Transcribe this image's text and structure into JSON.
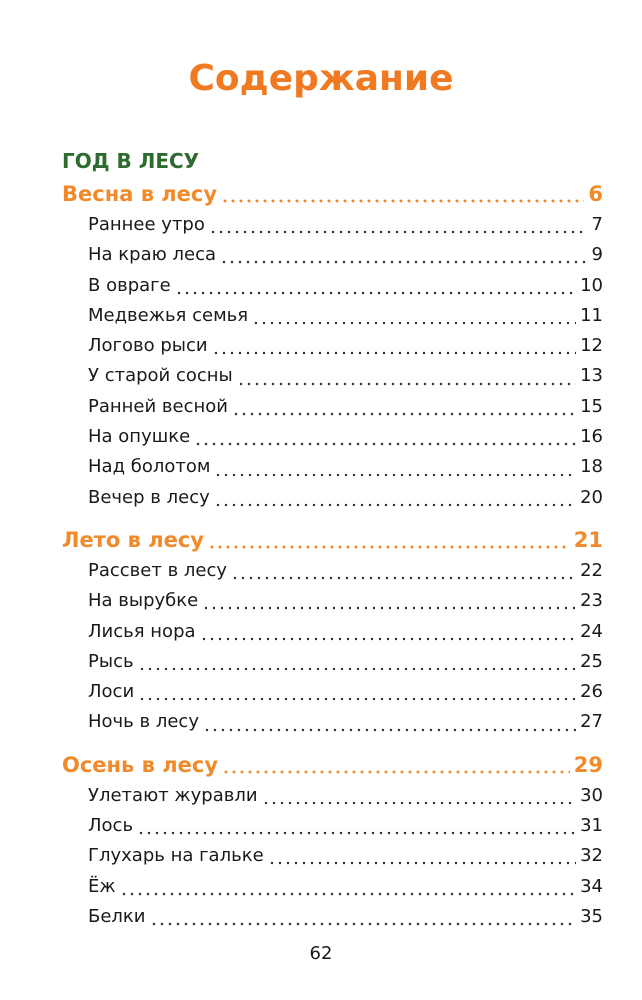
{
  "title": "Содержание",
  "section": "ГОД В ЛЕСУ",
  "parts": [
    {
      "title": "Весна в лесу",
      "page": 6,
      "entries": [
        {
          "title": "Раннее утро",
          "page": 7
        },
        {
          "title": "На краю леса",
          "page": 9
        },
        {
          "title": "В овраге",
          "page": 10
        },
        {
          "title": "Медвежья семья",
          "page": 11
        },
        {
          "title": "Логово рыси",
          "page": 12
        },
        {
          "title": "У старой сосны",
          "page": 13
        },
        {
          "title": "Ранней весной",
          "page": 15
        },
        {
          "title": "На опушке",
          "page": 16
        },
        {
          "title": "Над болотом",
          "page": 18
        },
        {
          "title": "Вечер в лесу",
          "page": 20
        }
      ]
    },
    {
      "title": "Лето в лесу",
      "page": 21,
      "entries": [
        {
          "title": "Рассвет в лесу",
          "page": 22
        },
        {
          "title": "На вырубке",
          "page": 23
        },
        {
          "title": "Лисья нора",
          "page": 24
        },
        {
          "title": "Рысь",
          "page": 25
        },
        {
          "title": "Лоси",
          "page": 26
        },
        {
          "title": "Ночь в лесу",
          "page": 27
        }
      ]
    },
    {
      "title": "Осень в лесу",
      "page": 29,
      "entries": [
        {
          "title": "Улетают журавли",
          "page": 30
        },
        {
          "title": "Лось",
          "page": 31
        },
        {
          "title": "Глухарь на гальке",
          "page": 32
        },
        {
          "title": "Ёж",
          "page": 34
        },
        {
          "title": "Белки",
          "page": 35
        }
      ]
    }
  ],
  "page_number": 62
}
